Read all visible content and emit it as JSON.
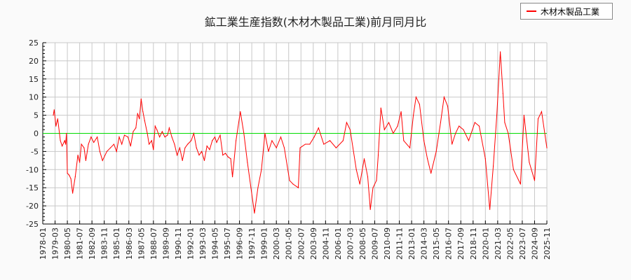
{
  "chart_data": {
    "type": "line",
    "title": "鉱工業生産指数(木材木製品工業)前月同月比",
    "xlabel": "",
    "ylabel": "",
    "ylim": [
      -25,
      25
    ],
    "yticks": [
      "25",
      "20",
      "15",
      "10",
      "5",
      "0",
      "-5",
      "-10",
      "-15",
      "-20",
      "-25"
    ],
    "xticks": [
      "1978-01",
      "1979-03",
      "1980-05",
      "1981-07",
      "1982-09",
      "1983-11",
      "1985-01",
      "1986-03",
      "1987-05",
      "1988-07",
      "1989-09",
      "1990-11",
      "1992-01",
      "1993-03",
      "1994-05",
      "1995-07",
      "1996-09",
      "1997-11",
      "1999-01",
      "2000-03",
      "2001-05",
      "2002-07",
      "2003-09",
      "2004-11",
      "2006-01",
      "2007-03",
      "2008-05",
      "2009-07",
      "2010-09",
      "2011-11",
      "2013-01",
      "2014-03",
      "2015-05",
      "2016-07",
      "2017-09",
      "2018-11",
      "2020-01",
      "2021-03",
      "2022-05",
      "2023-07",
      "2024-09",
      "2025-11"
    ],
    "xrange": [
      "1978-01",
      "2025-11"
    ],
    "grid": true,
    "legend_position": "top-right",
    "reference_line": {
      "value": 0,
      "color": "#00dd00"
    },
    "series": [
      {
        "name": "木材木製品工業",
        "color": "#ff0000",
        "points": [
          [
            "1979-01",
            5
          ],
          [
            "1979-02",
            6.5
          ],
          [
            "1979-04",
            2
          ],
          [
            "1979-06",
            4
          ],
          [
            "1979-09",
            -2
          ],
          [
            "1979-11",
            -3.5
          ],
          [
            "1980-02",
            -2
          ],
          [
            "1980-03",
            -3
          ],
          [
            "1980-04",
            0
          ],
          [
            "1980-05",
            -11
          ],
          [
            "1980-07",
            -11.5
          ],
          [
            "1980-09",
            -12.5
          ],
          [
            "1980-11",
            -16.5
          ],
          [
            "1981-02",
            -12
          ],
          [
            "1981-05",
            -6
          ],
          [
            "1981-07",
            -8
          ],
          [
            "1981-09",
            -3
          ],
          [
            "1981-12",
            -4
          ],
          [
            "1982-02",
            -7.5
          ],
          [
            "1982-05",
            -3
          ],
          [
            "1982-08",
            -1
          ],
          [
            "1982-11",
            -2.5
          ],
          [
            "1983-03",
            -1
          ],
          [
            "1983-06",
            -5
          ],
          [
            "1983-09",
            -7.5
          ],
          [
            "1984-02",
            -5
          ],
          [
            "1984-06",
            -4
          ],
          [
            "1984-10",
            -3
          ],
          [
            "1985-01",
            -5
          ],
          [
            "1985-04",
            -1
          ],
          [
            "1985-07",
            -3
          ],
          [
            "1985-10",
            -0.5
          ],
          [
            "1986-02",
            -1
          ],
          [
            "1986-05",
            -3.5
          ],
          [
            "1986-08",
            0.5
          ],
          [
            "1986-11",
            1.5
          ],
          [
            "1987-01",
            5.5
          ],
          [
            "1987-03",
            4
          ],
          [
            "1987-05",
            9.5
          ],
          [
            "1987-07",
            6
          ],
          [
            "1987-09",
            3.5
          ],
          [
            "1987-12",
            0
          ],
          [
            "1988-02",
            -3
          ],
          [
            "1988-05",
            -2
          ],
          [
            "1988-07",
            -4.5
          ],
          [
            "1988-09",
            2
          ],
          [
            "1988-11",
            1
          ],
          [
            "1989-02",
            -1
          ],
          [
            "1989-05",
            0.5
          ],
          [
            "1989-08",
            -1
          ],
          [
            "1989-11",
            -0.5
          ],
          [
            "1990-01",
            1.5
          ],
          [
            "1990-04",
            -1
          ],
          [
            "1990-07",
            -3
          ],
          [
            "1990-10",
            -6
          ],
          [
            "1991-01",
            -4
          ],
          [
            "1991-04",
            -7.5
          ],
          [
            "1991-07",
            -4
          ],
          [
            "1991-10",
            -3
          ],
          [
            "1992-02",
            -2
          ],
          [
            "1992-05",
            0
          ],
          [
            "1992-08",
            -4
          ],
          [
            "1992-11",
            -6
          ],
          [
            "1993-02",
            -5
          ],
          [
            "1993-05",
            -7.5
          ],
          [
            "1993-08",
            -3.5
          ],
          [
            "1993-11",
            -4.5
          ],
          [
            "1994-02",
            -2
          ],
          [
            "1994-05",
            -1
          ],
          [
            "1994-07",
            -2.5
          ],
          [
            "1994-11",
            -0.5
          ],
          [
            "1995-02",
            -6
          ],
          [
            "1995-05",
            -5.5
          ],
          [
            "1995-08",
            -6.5
          ],
          [
            "1995-11",
            -7
          ],
          [
            "1996-01",
            -12
          ],
          [
            "1996-05",
            -2
          ],
          [
            "1996-10",
            6
          ],
          [
            "1997-02",
            0
          ],
          [
            "1997-06",
            -8
          ],
          [
            "1997-10",
            -15
          ],
          [
            "1998-02",
            -22
          ],
          [
            "1998-06",
            -15
          ],
          [
            "1998-10",
            -10
          ],
          [
            "1999-02",
            0
          ],
          [
            "1999-06",
            -5
          ],
          [
            "1999-10",
            -2
          ],
          [
            "2000-03",
            -4
          ],
          [
            "2000-08",
            -1
          ],
          [
            "2000-12",
            -4
          ],
          [
            "2001-06",
            -13
          ],
          [
            "2001-10",
            -14
          ],
          [
            "2002-04",
            -15
          ],
          [
            "2002-06",
            -4
          ],
          [
            "2002-12",
            -3
          ],
          [
            "2003-05",
            -3
          ],
          [
            "2003-10",
            -1
          ],
          [
            "2004-03",
            1.5
          ],
          [
            "2004-09",
            -3
          ],
          [
            "2005-04",
            -2
          ],
          [
            "2005-11",
            -4
          ],
          [
            "2006-07",
            -2
          ],
          [
            "2006-11",
            3
          ],
          [
            "2007-03",
            1
          ],
          [
            "2007-10",
            -10
          ],
          [
            "2008-02",
            -14
          ],
          [
            "2008-07",
            -7
          ],
          [
            "2008-11",
            -12
          ],
          [
            "2009-02",
            -21
          ],
          [
            "2009-05",
            -15
          ],
          [
            "2009-09",
            -13
          ],
          [
            "2009-11",
            -6
          ],
          [
            "2010-02",
            7
          ],
          [
            "2010-06",
            1
          ],
          [
            "2010-11",
            3
          ],
          [
            "2011-04",
            0
          ],
          [
            "2011-09",
            2
          ],
          [
            "2012-01",
            6
          ],
          [
            "2012-04",
            -2
          ],
          [
            "2012-11",
            -4
          ],
          [
            "2013-03",
            5
          ],
          [
            "2013-06",
            10
          ],
          [
            "2013-10",
            8
          ],
          [
            "2014-03",
            -2
          ],
          [
            "2014-07",
            -7
          ],
          [
            "2014-11",
            -11
          ],
          [
            "2015-05",
            -5
          ],
          [
            "2015-10",
            3
          ],
          [
            "2016-02",
            10
          ],
          [
            "2016-06",
            7.5
          ],
          [
            "2016-11",
            -3
          ],
          [
            "2017-03",
            0
          ],
          [
            "2017-07",
            2
          ],
          [
            "2017-12",
            1
          ],
          [
            "2018-06",
            -2
          ],
          [
            "2019-01",
            3
          ],
          [
            "2019-06",
            2
          ],
          [
            "2020-01",
            -7
          ],
          [
            "2020-06",
            -21
          ],
          [
            "2020-10",
            -9
          ],
          [
            "2021-02",
            5
          ],
          [
            "2021-06",
            22.5
          ],
          [
            "2021-09",
            11
          ],
          [
            "2021-11",
            3
          ],
          [
            "2022-03",
            0
          ],
          [
            "2022-09",
            -10
          ],
          [
            "2023-05",
            -14
          ],
          [
            "2023-09",
            5
          ],
          [
            "2024-03",
            -8
          ],
          [
            "2024-09",
            -13
          ],
          [
            "2025-01",
            4
          ],
          [
            "2025-05",
            6
          ],
          [
            "2025-11",
            -4
          ]
        ]
      }
    ]
  }
}
